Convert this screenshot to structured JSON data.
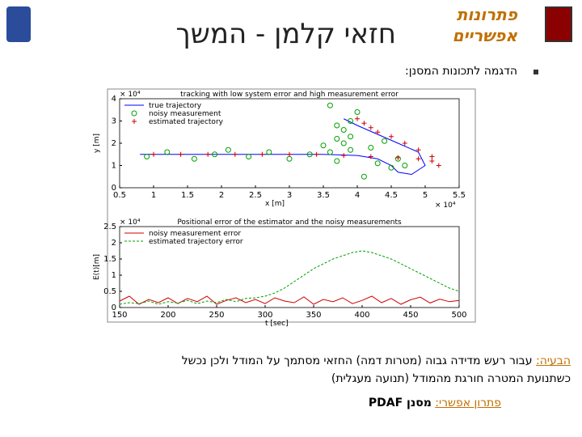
{
  "header": {
    "title": "חזאי קלמן - המשך",
    "logo_lines": [
      "פתרונות",
      "אפשריים"
    ]
  },
  "bullet": "הדגמה לתכונות המסנן:",
  "problem": {
    "label": "הבעיה:",
    "lines": [
      "עבור רעש מדידה גבוה (מטרות דמה) החזאי מסתמך על המודל ולכן נכשל",
      "כשתנועת המטרה חורגת מהמודל (תנועה מעגלית)"
    ]
  },
  "solution": {
    "label": "פתרון אפשרי:",
    "text": "מסנן PDAF"
  },
  "chart_data": [
    {
      "type": "line",
      "title": "tracking with low system error and high measurement error",
      "x_label": "x [m]",
      "y_label": "y [m]",
      "x_multiplier": "× 10⁴",
      "y_multiplier": "× 10⁴",
      "xlim": [
        0.5,
        5.5
      ],
      "ylim": [
        0,
        4
      ],
      "xticks": [
        0.5,
        1,
        1.5,
        2,
        2.5,
        3,
        3.5,
        4,
        4.5,
        5,
        5.5
      ],
      "yticks": [
        0,
        1,
        2,
        3,
        4
      ],
      "legend": "top-left",
      "series": [
        {
          "name": "true trajectory",
          "color": "#0000ff",
          "style": "solid",
          "x": [
            0.8,
            1.5,
            2.5,
            3.5,
            4.0,
            4.3,
            4.5,
            4.6,
            4.8,
            5.0,
            4.9,
            4.6,
            4.3,
            4.0,
            3.8
          ],
          "values": [
            1.5,
            1.5,
            1.5,
            1.5,
            1.45,
            1.3,
            1.0,
            0.7,
            0.6,
            1.0,
            1.6,
            2.0,
            2.4,
            2.8,
            3.1
          ]
        },
        {
          "name": "noisy measurement",
          "color": "#00a000",
          "style": "circle",
          "x": [
            0.9,
            1.2,
            1.6,
            1.9,
            2.1,
            2.4,
            2.7,
            3.0,
            3.3,
            3.5,
            3.7,
            3.9,
            4.1,
            4.3,
            4.5,
            4.6,
            4.7,
            3.7,
            3.8,
            3.9,
            4.0,
            3.6,
            3.8,
            4.2,
            3.6,
            3.9,
            4.4,
            3.7
          ],
          "values": [
            1.4,
            1.6,
            1.3,
            1.5,
            1.7,
            1.4,
            1.6,
            1.3,
            1.5,
            1.9,
            1.2,
            1.7,
            0.5,
            1.1,
            0.9,
            1.3,
            1.0,
            2.2,
            2.6,
            3.0,
            3.4,
            1.6,
            2.0,
            1.8,
            3.7,
            2.3,
            2.1,
            2.8
          ]
        },
        {
          "name": "estimated trajectory",
          "color": "#d00000",
          "style": "plus",
          "x": [
            1.0,
            1.4,
            1.8,
            2.2,
            2.6,
            3.0,
            3.4,
            3.8,
            4.2,
            4.6,
            4.9,
            5.1,
            5.2,
            5.1,
            4.9,
            4.7,
            4.5,
            4.3,
            4.2,
            4.1,
            4.0
          ],
          "values": [
            1.5,
            1.5,
            1.5,
            1.5,
            1.5,
            1.5,
            1.5,
            1.45,
            1.4,
            1.35,
            1.3,
            1.2,
            1.0,
            1.4,
            1.7,
            2.0,
            2.3,
            2.5,
            2.7,
            2.9,
            3.1
          ]
        }
      ]
    },
    {
      "type": "line",
      "title": "Positional error of the estimator and the noisy measurements",
      "x_label": "t [sec]",
      "y_label": "E(t)[m]",
      "y_multiplier": "× 10⁴",
      "xlim": [
        150,
        500
      ],
      "ylim": [
        0,
        2.5
      ],
      "xticks": [
        150,
        200,
        250,
        300,
        350,
        400,
        450,
        500
      ],
      "yticks": [
        0,
        0.5,
        1,
        1.5,
        2,
        2.5
      ],
      "legend": "top-left",
      "x": [
        150,
        160,
        170,
        180,
        190,
        200,
        210,
        220,
        230,
        240,
        250,
        260,
        270,
        280,
        290,
        300,
        310,
        320,
        330,
        340,
        350,
        360,
        370,
        380,
        390,
        400,
        410,
        420,
        430,
        440,
        450,
        460,
        470,
        480,
        490,
        500
      ],
      "series": [
        {
          "name": "noisy measurement error",
          "color": "#d00000",
          "style": "solid",
          "values": [
            0.2,
            0.35,
            0.1,
            0.25,
            0.15,
            0.3,
            0.12,
            0.28,
            0.18,
            0.35,
            0.1,
            0.22,
            0.3,
            0.15,
            0.25,
            0.12,
            0.3,
            0.2,
            0.15,
            0.33,
            0.1,
            0.25,
            0.18,
            0.3,
            0.12,
            0.22,
            0.35,
            0.15,
            0.28,
            0.1,
            0.24,
            0.32,
            0.14,
            0.26,
            0.18,
            0.22
          ]
        },
        {
          "name": "estimated trajectory error",
          "color": "#00a000",
          "style": "dashed",
          "values": [
            0.1,
            0.15,
            0.12,
            0.2,
            0.1,
            0.18,
            0.14,
            0.22,
            0.12,
            0.2,
            0.15,
            0.25,
            0.18,
            0.28,
            0.3,
            0.35,
            0.45,
            0.6,
            0.8,
            1.0,
            1.2,
            1.35,
            1.5,
            1.6,
            1.7,
            1.75,
            1.7,
            1.6,
            1.5,
            1.35,
            1.2,
            1.05,
            0.9,
            0.75,
            0.6,
            0.5
          ]
        }
      ]
    }
  ]
}
